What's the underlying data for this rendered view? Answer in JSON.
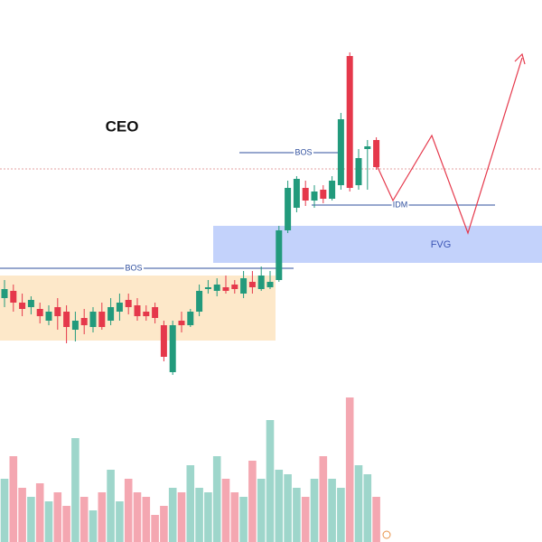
{
  "chart_data": {
    "type": "candlestick",
    "annotations": {
      "ceo": "CEO",
      "bos_low": "BOS",
      "bos_high": "BOS",
      "idm": "IDM",
      "fvg": "FVG"
    },
    "ylim": [
      0,
      600
    ],
    "y2lim": [
      0,
      600
    ],
    "up_color": "#229a7c",
    "down_color": "#e5384b",
    "volume_up_color": "#9ed6cb",
    "volume_down_color": "#f4a7b1",
    "open": [
      270,
      278,
      265,
      260,
      258,
      245,
      260,
      255,
      235,
      248,
      238,
      255,
      245,
      255,
      268,
      262,
      255,
      260,
      240,
      188,
      245,
      240,
      255,
      280,
      278,
      282,
      285,
      275,
      288,
      280,
      282,
      290,
      345,
      370,
      392,
      378,
      390,
      380,
      395,
      538,
      395,
      435,
      445
    ],
    "high": [
      290,
      285,
      275,
      272,
      265,
      262,
      270,
      262,
      255,
      258,
      260,
      265,
      270,
      275,
      275,
      270,
      262,
      265,
      245,
      245,
      255,
      258,
      285,
      290,
      292,
      295,
      290,
      300,
      300,
      305,
      300,
      350,
      400,
      405,
      400,
      395,
      395,
      405,
      475,
      542,
      435,
      445,
      448
    ],
    "low": [
      260,
      255,
      250,
      252,
      242,
      240,
      235,
      220,
      222,
      230,
      232,
      235,
      240,
      245,
      252,
      245,
      245,
      242,
      200,
      185,
      232,
      238,
      250,
      275,
      272,
      275,
      275,
      270,
      275,
      278,
      280,
      288,
      342,
      365,
      372,
      370,
      375,
      378,
      390,
      388,
      390,
      390,
      412
    ],
    "close": [
      280,
      265,
      258,
      268,
      250,
      255,
      250,
      238,
      245,
      240,
      255,
      238,
      260,
      265,
      260,
      250,
      250,
      248,
      205,
      240,
      240,
      255,
      278,
      282,
      285,
      278,
      280,
      292,
      282,
      295,
      288,
      345,
      392,
      402,
      378,
      388,
      380,
      400,
      468,
      392,
      425,
      438,
      415
    ],
    "volume": [
      70,
      95,
      60,
      50,
      65,
      45,
      55,
      40,
      115,
      50,
      35,
      55,
      80,
      45,
      70,
      55,
      50,
      30,
      40,
      60,
      55,
      85,
      60,
      55,
      95,
      70,
      55,
      50,
      90,
      70,
      135,
      80,
      75,
      60,
      50,
      70,
      95,
      70,
      60,
      160,
      85,
      75,
      50
    ]
  }
}
